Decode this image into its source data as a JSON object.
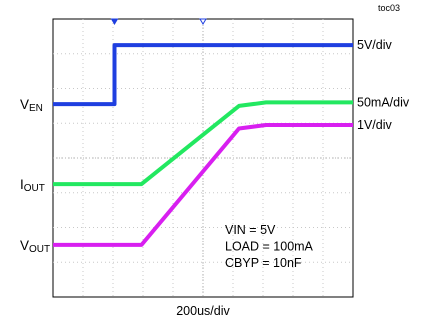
{
  "chart_data": {
    "type": "line",
    "figure_id": "toc03",
    "x_scale": "200us/div",
    "divisions": {
      "x": 10,
      "y": 8
    },
    "conditions": [
      {
        "key": "VIN",
        "sep": "  =",
        "value": "5V"
      },
      {
        "key": "LOAD",
        "sep": " =",
        "value": "100mA"
      },
      {
        "key": "CBYP",
        "sep": " =",
        "value": "10nF"
      }
    ],
    "series": [
      {
        "label_main": "V",
        "label_sub": "EN",
        "scale": "5V/div",
        "color": "#1f3fe0",
        "points": [
          [
            0,
            5.55
          ],
          [
            2.05,
            5.55
          ],
          [
            2.05,
            7.25
          ],
          [
            10,
            7.25
          ]
        ]
      },
      {
        "label_main": "I",
        "label_sub": "OUT",
        "scale": "50mA/div",
        "color": "#22e860",
        "points": [
          [
            0,
            3.25
          ],
          [
            2.95,
            3.25
          ],
          [
            6.2,
            5.5
          ],
          [
            7.1,
            5.6
          ],
          [
            10,
            5.6
          ]
        ]
      },
      {
        "label_main": "V",
        "label_sub": "OUT",
        "scale": "1V/div",
        "color": "#d81ff0",
        "points": [
          [
            0,
            1.5
          ],
          [
            2.95,
            1.5
          ],
          [
            6.2,
            4.85
          ],
          [
            7.1,
            4.95
          ],
          [
            10,
            4.95
          ]
        ]
      }
    ],
    "trigger_markers": [
      {
        "x": 2.05,
        "filled": true
      },
      {
        "x": 5.0,
        "filled": false
      }
    ]
  }
}
